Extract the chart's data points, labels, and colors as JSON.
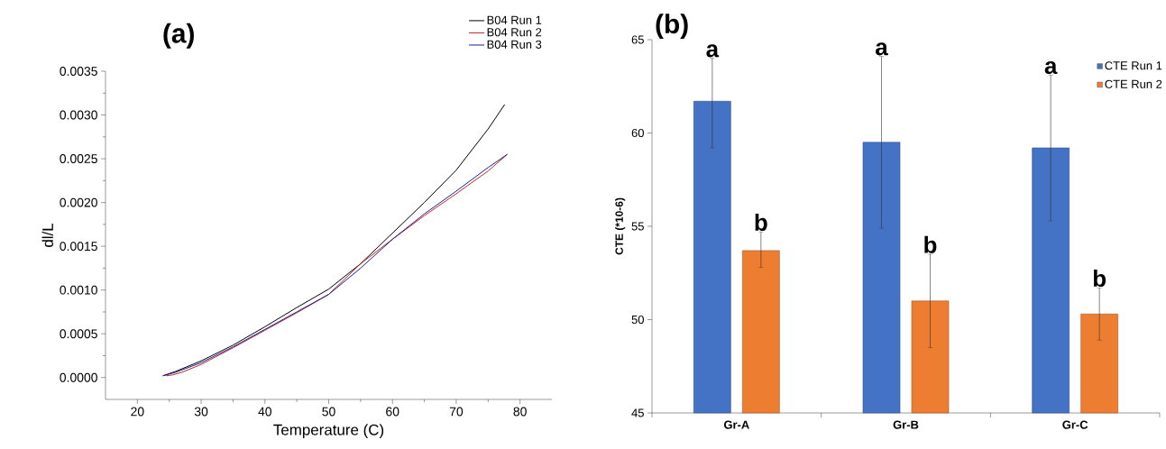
{
  "chart_data": [
    {
      "type": "line",
      "title": "(a)",
      "xlabel": "Temperature (C)",
      "ylabel": "dl/L",
      "xlim": [
        15,
        85
      ],
      "ylim": [
        -0.00025,
        0.0035
      ],
      "xticks": [
        20,
        30,
        40,
        50,
        60,
        70,
        80
      ],
      "yticks": [
        {
          "value": 0,
          "label": "0.0000"
        },
        {
          "value": 0.0005,
          "label": "0.0005"
        },
        {
          "value": 0.001,
          "label": "0.0010"
        },
        {
          "value": 0.0015,
          "label": "0.0015"
        },
        {
          "value": 0.002,
          "label": "0.0020"
        },
        {
          "value": 0.0025,
          "label": "0.0025"
        },
        {
          "value": 0.003,
          "label": "0.0030"
        },
        {
          "value": 0.0035,
          "label": "0.0035"
        }
      ],
      "legend": "top right",
      "marker": "none",
      "line_style": "solid",
      "series": [
        {
          "name": "B04 Run 1",
          "color": "#000000",
          "x": [
            24,
            26,
            30,
            35,
            40,
            45,
            50,
            55,
            60,
            65,
            70,
            75,
            77.6
          ],
          "values": [
            2e-05,
            7e-05,
            0.00019,
            0.00037,
            0.00058,
            0.0008,
            0.00101,
            0.0013,
            0.00165,
            0.002,
            0.00237,
            0.00284,
            0.00312
          ]
        },
        {
          "name": "B04 Run 2",
          "color": "#c0272d",
          "x": [
            24.5,
            25.5,
            27,
            30,
            35,
            40,
            45,
            50,
            55,
            60,
            65,
            70,
            75,
            78
          ],
          "values": [
            2e-05,
            3e-05,
            6e-05,
            0.00015,
            0.00034,
            0.00054,
            0.00074,
            0.00095,
            0.0013,
            0.00158,
            0.00185,
            0.0021,
            0.00236,
            0.00255
          ]
        },
        {
          "name": "B04 Run 3",
          "color": "#1f1f8f",
          "x": [
            24,
            26,
            30,
            35,
            40,
            45,
            50,
            55,
            60,
            65,
            70,
            75,
            78
          ],
          "values": [
            2e-05,
            6e-05,
            0.00017,
            0.00035,
            0.00055,
            0.00075,
            0.00095,
            0.00125,
            0.00158,
            0.00187,
            0.00213,
            0.0024,
            0.00255
          ]
        }
      ]
    },
    {
      "type": "bar",
      "title": "(b)",
      "ylabel": "CTE (*10-6)",
      "categories": [
        "Gr-A",
        "Gr-B",
        "Gr-C"
      ],
      "ylim": [
        45,
        65
      ],
      "yticks": [
        45,
        50,
        55,
        60,
        65
      ],
      "legend": "top right",
      "series": [
        {
          "name": "CTE Run 1",
          "color": "#4472c4",
          "values": [
            61.7,
            59.5,
            59.2
          ],
          "errors": [
            [
              59.2,
              64.0
            ],
            [
              54.9,
              64.1
            ],
            [
              55.3,
              63.1
            ]
          ]
        },
        {
          "name": "CTE Run 2",
          "color": "#ed7d31",
          "values": [
            53.7,
            51.0,
            50.3
          ],
          "errors": [
            [
              52.8,
              54.7
            ],
            [
              48.5,
              53.5
            ],
            [
              48.9,
              51.7
            ]
          ]
        }
      ],
      "annotations": [
        "a",
        "b",
        "a",
        "b",
        "a",
        "b"
      ]
    }
  ]
}
